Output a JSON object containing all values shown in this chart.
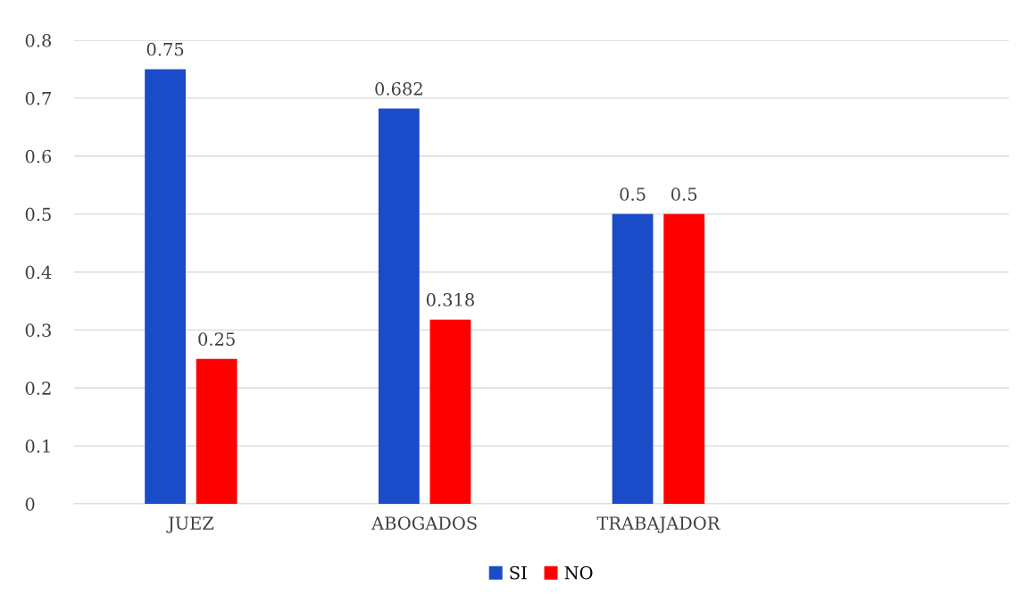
{
  "chart_data": {
    "type": "bar",
    "categories": [
      "JUEZ",
      "ABOGADOS",
      "TRABAJADOR",
      null
    ],
    "series": [
      {
        "name": "SI",
        "color": "#1a4bc8",
        "values": [
          0.75,
          0.682,
          0.5,
          null
        ]
      },
      {
        "name": "NO",
        "color": "#ff0000",
        "values": [
          0.25,
          0.318,
          0.5,
          null
        ]
      }
    ],
    "ylim": [
      0,
      0.8
    ],
    "yticks": [
      0,
      0.1,
      0.2,
      0.3,
      0.4,
      0.5,
      0.6,
      0.7,
      0.8
    ],
    "grid": "y",
    "legend": "bottom",
    "data_labels": true
  }
}
